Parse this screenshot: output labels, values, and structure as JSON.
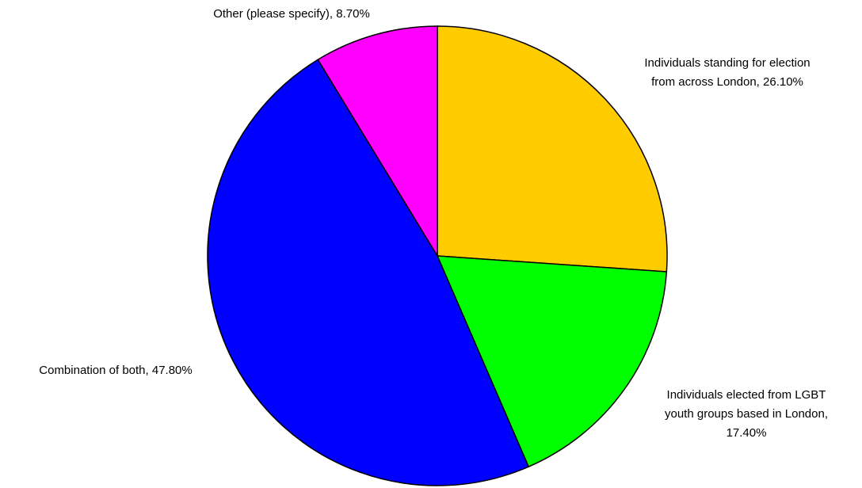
{
  "chart_data": {
    "type": "pie",
    "values": [
      26.1,
      17.4,
      47.8,
      8.7
    ],
    "value_labels": [
      "Individuals standing for election from across London, 26.10%",
      "Individuals elected from LGBT youth groups based in London, 17.40%",
      "Combination of both, 47.80%",
      "Other (please specify), 8.70%"
    ],
    "colors": [
      "#ffcc00",
      "#00ff00",
      "#0000ff",
      "#ff00ff"
    ]
  }
}
